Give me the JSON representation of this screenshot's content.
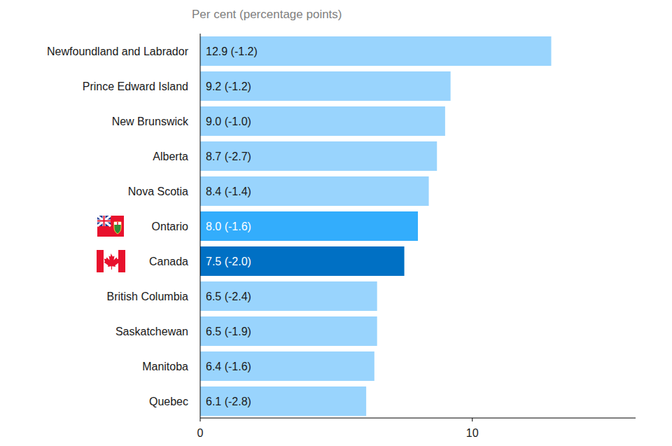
{
  "chart_data": {
    "type": "bar",
    "orientation": "horizontal",
    "x_label": "Per cent (percentage points)",
    "categories": [
      "Newfoundland and Labrador",
      "Prince Edward Island",
      "New Brunswick",
      "Alberta",
      "Nova Scotia",
      "Ontario",
      "Canada",
      "British Columbia",
      "Saskatchewan",
      "Manitoba",
      "Quebec"
    ],
    "values": [
      12.9,
      9.2,
      9.0,
      8.7,
      8.4,
      8.0,
      7.5,
      6.5,
      6.5,
      6.4,
      6.1
    ],
    "value_labels": [
      "12.9 (-1.2)",
      "9.2 (-1.2)",
      "9.0 (-1.0)",
      "8.7 (-2.7)",
      "8.4 (-1.4)",
      "8.0 (-1.6)",
      "7.5 (-2.0)",
      "6.5 (-2.4)",
      "6.5 (-1.9)",
      "6.4 (-1.6)",
      "6.1 (-2.8)"
    ],
    "colors": [
      "#99d4fd",
      "#99d4fd",
      "#99d4fd",
      "#99d4fd",
      "#99d4fd",
      "#33adfc",
      "#0070c4",
      "#99d4fd",
      "#99d4fd",
      "#99d4fd",
      "#99d4fd"
    ],
    "data_labels": true,
    "grid": false,
    "xlim": [
      0,
      16
    ],
    "xticks": [
      0,
      10
    ]
  }
}
